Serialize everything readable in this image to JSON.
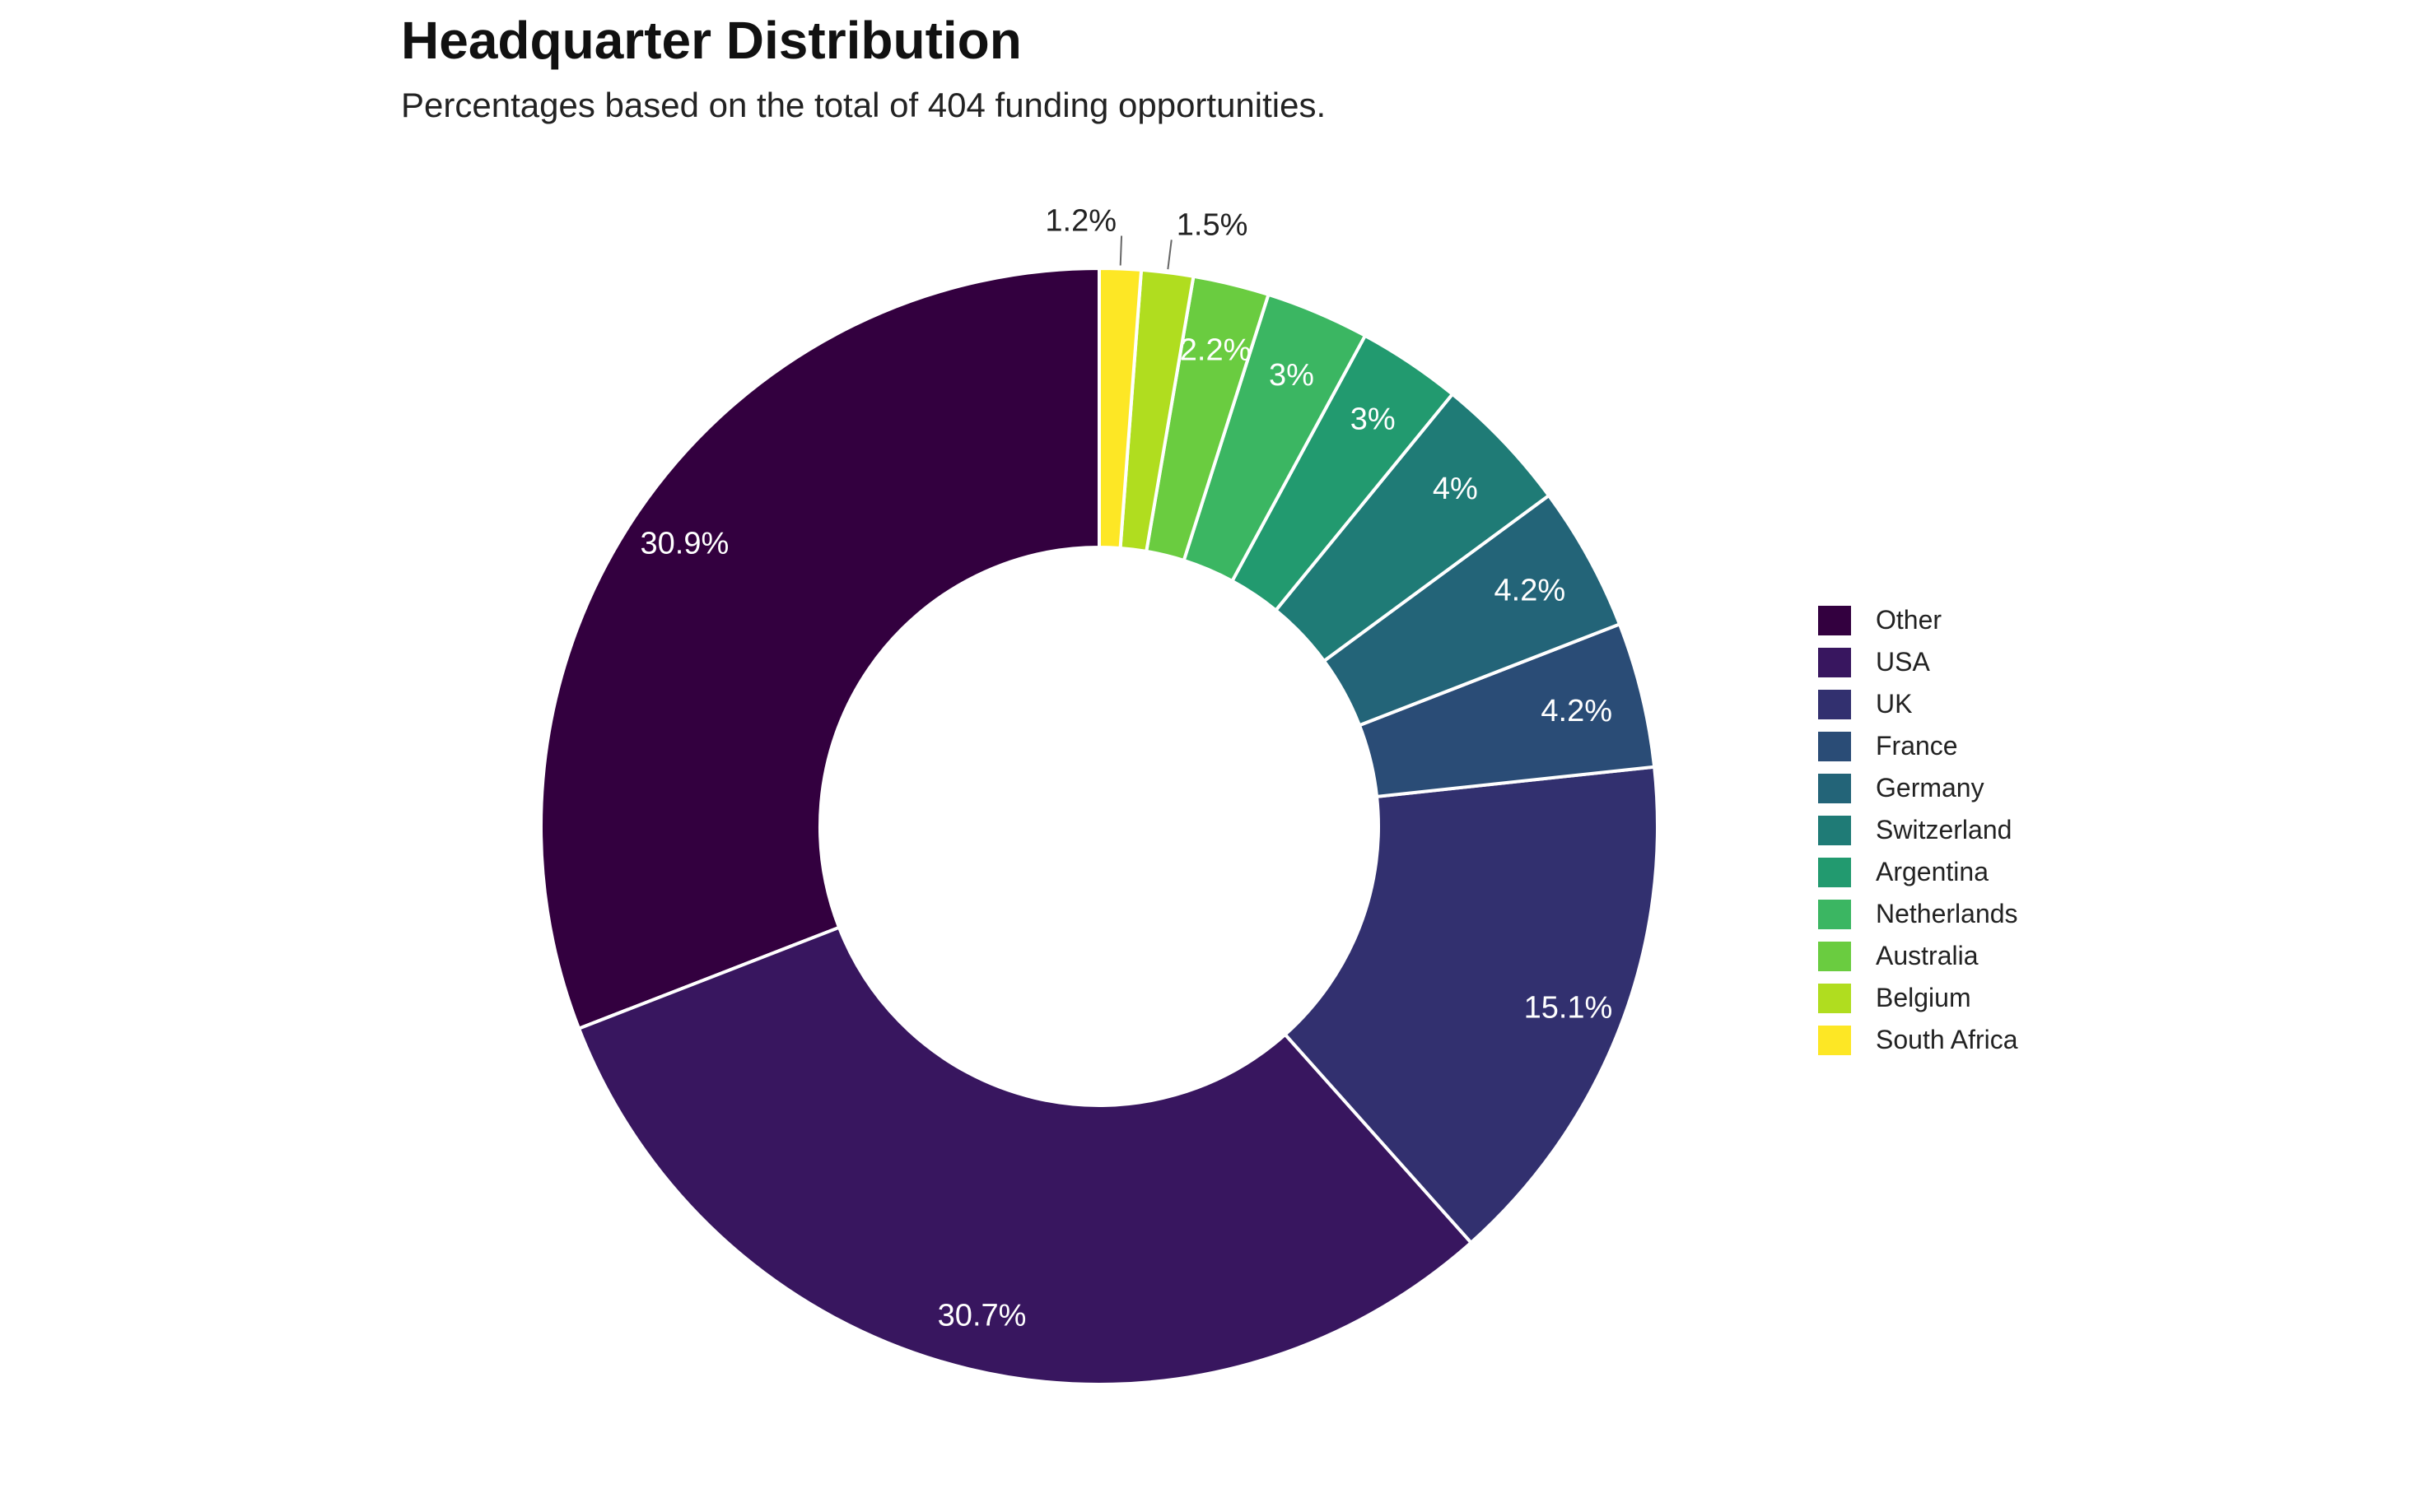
{
  "chart_data": {
    "type": "pie",
    "hole": 0.5,
    "title": "Headquarter Distribution",
    "subtitle": "Percentages based on the total of 404 funding opportunities.",
    "direction": "counterclockwise",
    "start_angle_deg": 90,
    "legend_position": "right",
    "slices": [
      {
        "label": "Other",
        "value": 30.9,
        "text": "30.9%",
        "color": "#33003f"
      },
      {
        "label": "USA",
        "value": 30.7,
        "text": "30.7%",
        "color": "#38165f"
      },
      {
        "label": "UK",
        "value": 15.1,
        "text": "15.1%",
        "color": "#32306f"
      },
      {
        "label": "France",
        "value": 4.2,
        "text": "4.2%",
        "color": "#2a4c76"
      },
      {
        "label": "Germany",
        "value": 4.2,
        "text": "4.2%",
        "color": "#236478"
      },
      {
        "label": "Switzerland",
        "value": 4.0,
        "text": "4%",
        "color": "#1f7b76"
      },
      {
        "label": "Argentina",
        "value": 3.0,
        "text": "3%",
        "color": "#229a6f"
      },
      {
        "label": "Netherlands",
        "value": 3.0,
        "text": "3%",
        "color": "#3bb662"
      },
      {
        "label": "Australia",
        "value": 2.2,
        "text": "2.2%",
        "color": "#6acc40"
      },
      {
        "label": "Belgium",
        "value": 1.5,
        "text": "1.5%",
        "color": "#b0dd1f"
      },
      {
        "label": "South Africa",
        "value": 1.2,
        "text": "1.2%",
        "color": "#fde725"
      }
    ]
  }
}
